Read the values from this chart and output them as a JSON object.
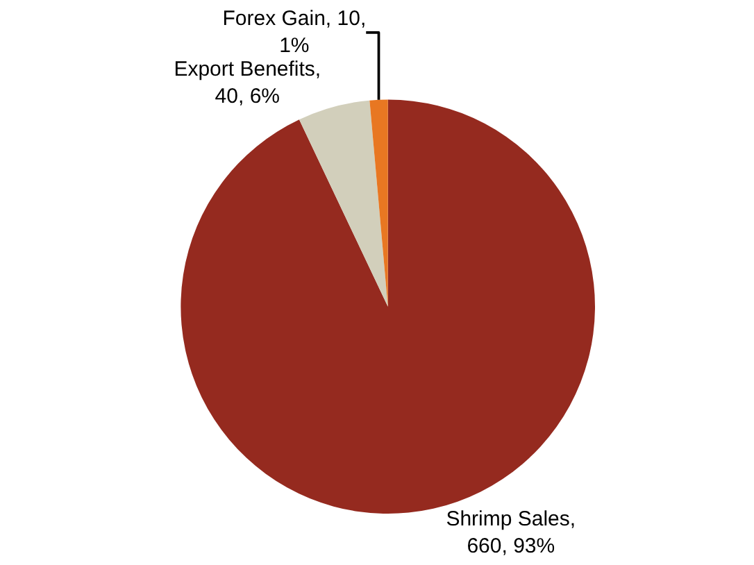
{
  "chart_data": {
    "type": "pie",
    "categories": [
      "Shrimp Sales",
      "Export Benefits",
      "Forex Gain"
    ],
    "values": [
      660,
      40,
      10
    ],
    "colors": [
      "#952a1f",
      "#d2cfbb",
      "#e87722"
    ],
    "value_labels": [
      ",\n660, 93%",
      ",\n40, 6%",
      ", 10,\n1%"
    ],
    "legend": false
  }
}
